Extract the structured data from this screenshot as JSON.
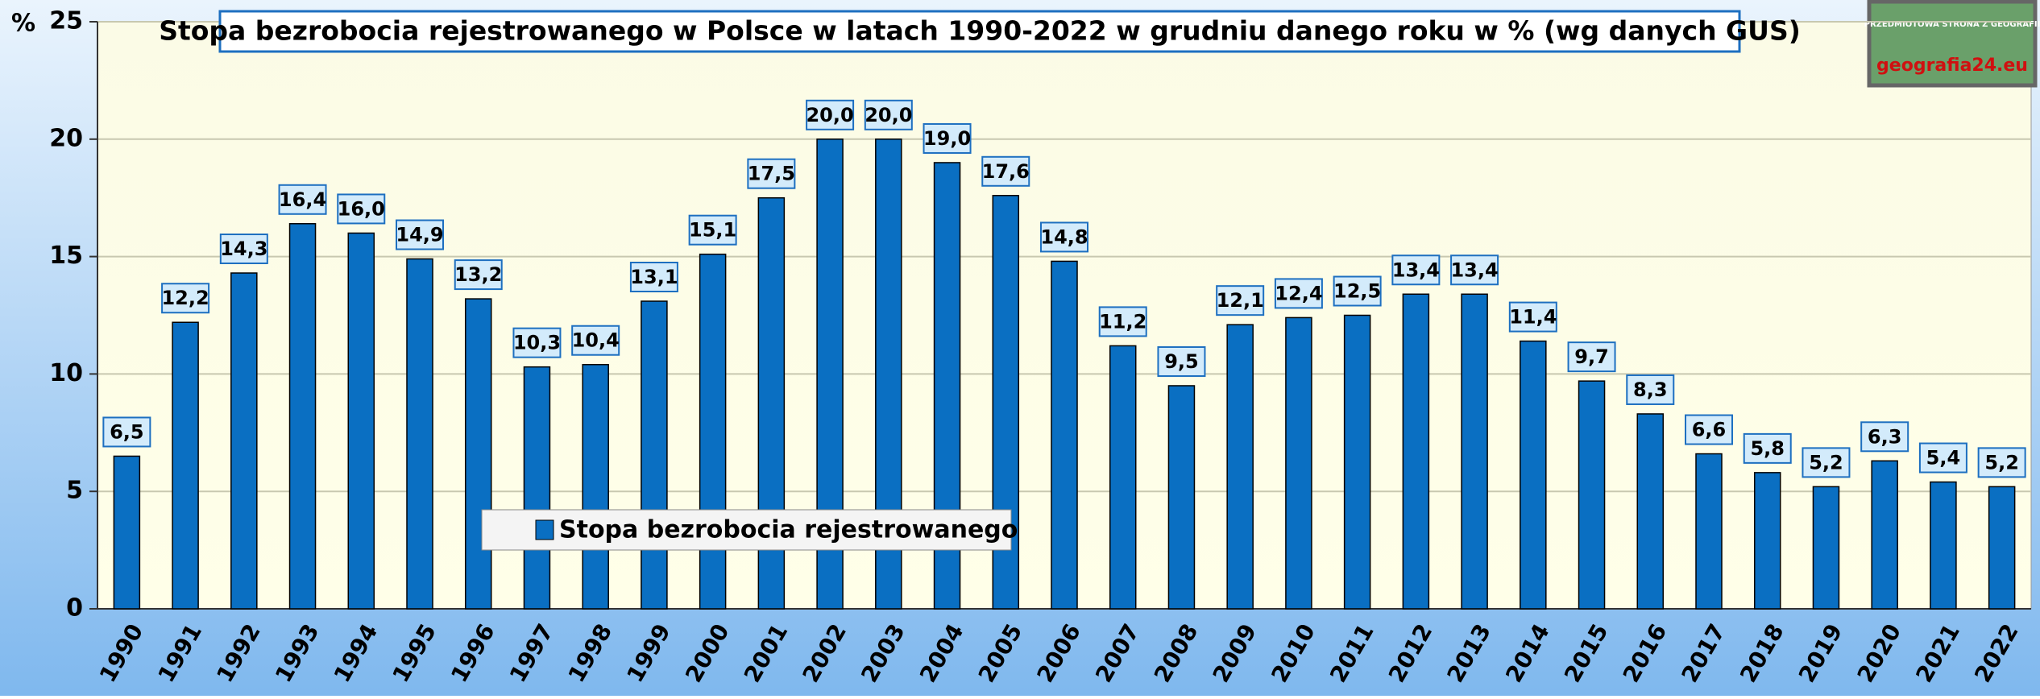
{
  "chart_data": {
    "type": "bar",
    "title": "Stopa bezrobocia rejestrowanego w Polsce w latach 1990-2022 w grudniu danego roku w % (wg danych GUS)",
    "y_label": "%",
    "logo": "geografia24.eu",
    "logo_caption": "PRZEDMIOTOWA STRONA Z GEOGRAFII",
    "categories": [
      "1990",
      "1991",
      "1992",
      "1993",
      "1994",
      "1995",
      "1996",
      "1997",
      "1998",
      "1999",
      "2000",
      "2001",
      "2002",
      "2003",
      "2004",
      "2005",
      "2006",
      "2007",
      "2008",
      "2009",
      "2010",
      "2011",
      "2012",
      "2013",
      "2014",
      "2015",
      "2016",
      "2017",
      "2018",
      "2019",
      "2020",
      "2021",
      "2022"
    ],
    "series": [
      {
        "name": "Stopa bezrobocia rejestrowanego",
        "color": "#0a6fc2",
        "values": [
          6.5,
          12.2,
          14.3,
          16.4,
          16.0,
          14.9,
          13.2,
          10.3,
          10.4,
          13.1,
          15.1,
          17.5,
          20.0,
          20.0,
          19.0,
          17.6,
          14.8,
          11.2,
          9.5,
          12.1,
          12.4,
          12.5,
          13.4,
          13.4,
          11.4,
          9.7,
          8.3,
          6.6,
          5.8,
          5.2,
          6.3,
          5.4,
          5.2
        ],
        "value_labels": [
          "6,5",
          "12,2",
          "14,3",
          "16,4",
          "16,0",
          "14,9",
          "13,2",
          "10,3",
          "10,4",
          "13,1",
          "15,1",
          "17,5",
          "20,0",
          "20,0",
          "19,0",
          "17,6",
          "14,8",
          "11,2",
          "9,5",
          "12,1",
          "12,4",
          "12,5",
          "13,4",
          "13,4",
          "11,4",
          "9,7",
          "8,3",
          "6,6",
          "5,8",
          "5,2",
          "6,3",
          "5,4",
          "5,2"
        ]
      }
    ],
    "ylim": [
      0,
      25
    ],
    "yticks": [
      0,
      5,
      10,
      15,
      20,
      25
    ],
    "grid": true
  }
}
